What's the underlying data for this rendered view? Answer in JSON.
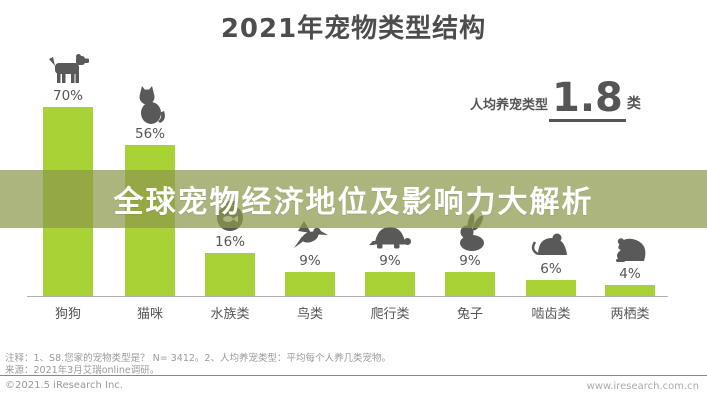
{
  "page": {
    "title": "2021年宠物类型结构",
    "overlay_title": "全球宠物经济地位及影响力大解析",
    "avg_stat": {
      "label": "人均养宠类型",
      "value": "1.8",
      "unit": "类"
    },
    "notes": {
      "line1": "注释：1、S8.您家的宠物类型是？ N= 3412。2、人均养宠类型：平均每个人养几类宠物。",
      "line2": "来源：2021年3月艾瑞online调研。"
    },
    "copyright": "©2021.5 iResearch Inc.",
    "website": "www.iresearch.com.cn",
    "colors": {
      "bar": "#a9d237",
      "icon": "#595959",
      "overlay_band": "rgba(140,152,76,0.72)",
      "title_text": "#4d4d4d",
      "overlay_text": "#ffffff"
    }
  },
  "chart_data": {
    "type": "bar",
    "title": "2021年宠物类型结构",
    "categories": [
      "狗狗",
      "猫咪",
      "水族类",
      "鸟类",
      "爬行类",
      "兔子",
      "啮齿类",
      "两栖类"
    ],
    "values": [
      70,
      56,
      16,
      9,
      9,
      9,
      6,
      4
    ],
    "value_labels": [
      "70%",
      "56%",
      "16%",
      "9%",
      "9%",
      "9%",
      "6%",
      "4%"
    ],
    "unit": "%",
    "ylim": [
      0,
      100
    ],
    "xlabel": "",
    "ylabel": "",
    "grid": false,
    "legend": "none",
    "annotation": {
      "label": "人均养宠类型",
      "value": 1.8,
      "unit": "类"
    },
    "icons": [
      "dog-icon",
      "cat-icon",
      "fishbowl-icon",
      "bird-icon",
      "turtle-icon",
      "rabbit-icon",
      "mouse-icon",
      "frog-icon"
    ]
  }
}
